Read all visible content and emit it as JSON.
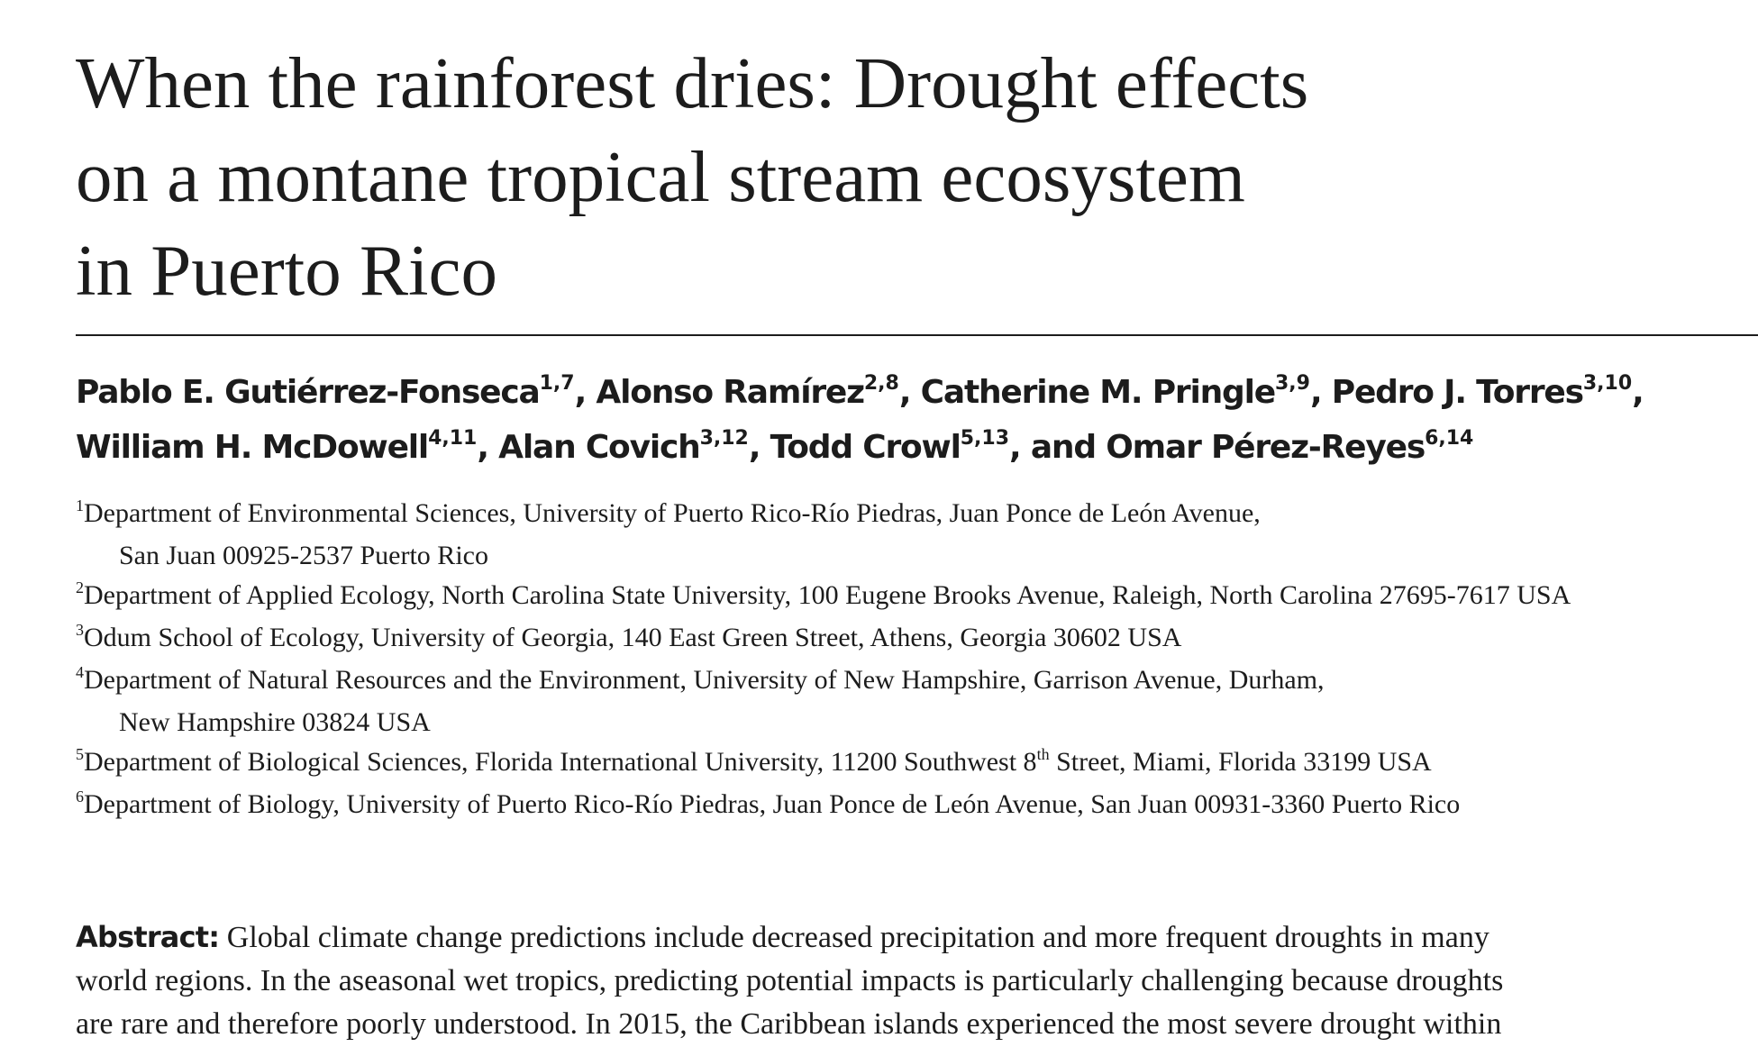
{
  "title": {
    "lines": [
      "When the rainforest dries: Drought effects",
      "on a montane tropical stream ecosystem",
      "in Puerto Rico"
    ]
  },
  "authors": {
    "line1": [
      {
        "name": "Pablo E. Gutiérrez-Fonseca",
        "sup": "1,7",
        "sep": ", "
      },
      {
        "name": "Alonso Ramírez",
        "sup": "2,8",
        "sep": ", "
      },
      {
        "name": "Catherine M. Pringle",
        "sup": "3,9",
        "sep": ", "
      },
      {
        "name": "Pedro J. Torres",
        "sup": "3,10",
        "sep": ","
      }
    ],
    "line2": [
      {
        "name": "William H. McDowell",
        "sup": "4,11",
        "sep": ", "
      },
      {
        "name": "Alan Covich",
        "sup": "3,12",
        "sep": ", "
      },
      {
        "name": "Todd Crowl",
        "sup": "5,13",
        "sep": ", "
      },
      {
        "name": "and Omar Pérez-Reyes",
        "sup": "6,14",
        "sep": ""
      }
    ]
  },
  "affiliations": [
    {
      "num": "1",
      "text": "Department of Environmental Sciences, University of Puerto Rico-Río Piedras, Juan Ponce de León Avenue,",
      "cont": "San Juan 00925-2537 Puerto Rico"
    },
    {
      "num": "2",
      "text": "Department of Applied Ecology, North Carolina State University, 100 Eugene Brooks Avenue, Raleigh, North Carolina 27695-7617 USA",
      "cont": ""
    },
    {
      "num": "3",
      "text": "Odum School of Ecology, University of Georgia, 140 East Green Street, Athens, Georgia 30602 USA",
      "cont": ""
    },
    {
      "num": "4",
      "text": "Department of Natural Resources and the Environment, University of New Hampshire, Garrison Avenue, Durham,",
      "cont": "New Hampshire 03824 USA"
    },
    {
      "num": "5",
      "text_before": "Department of Biological Sciences, Florida International University, 11200 Southwest 8",
      "text_sup": "th",
      "text_after": " Street, Miami, Florida 33199 USA"
    },
    {
      "num": "6",
      "text": "Department of Biology, University of Puerto Rico-Río Piedras, Juan Ponce de León Avenue, San Juan 00931-3360 Puerto Rico",
      "cont": ""
    }
  ],
  "abstract": {
    "label": "Abstract:",
    "lines": [
      " Global climate change predictions include decreased precipitation and more frequent droughts in many",
      "world regions. In the aseasonal wet tropics, predicting potential impacts is particularly challenging because droughts",
      "are rare and therefore poorly understood. In 2015, the Caribbean islands experienced the most severe drought within"
    ]
  }
}
